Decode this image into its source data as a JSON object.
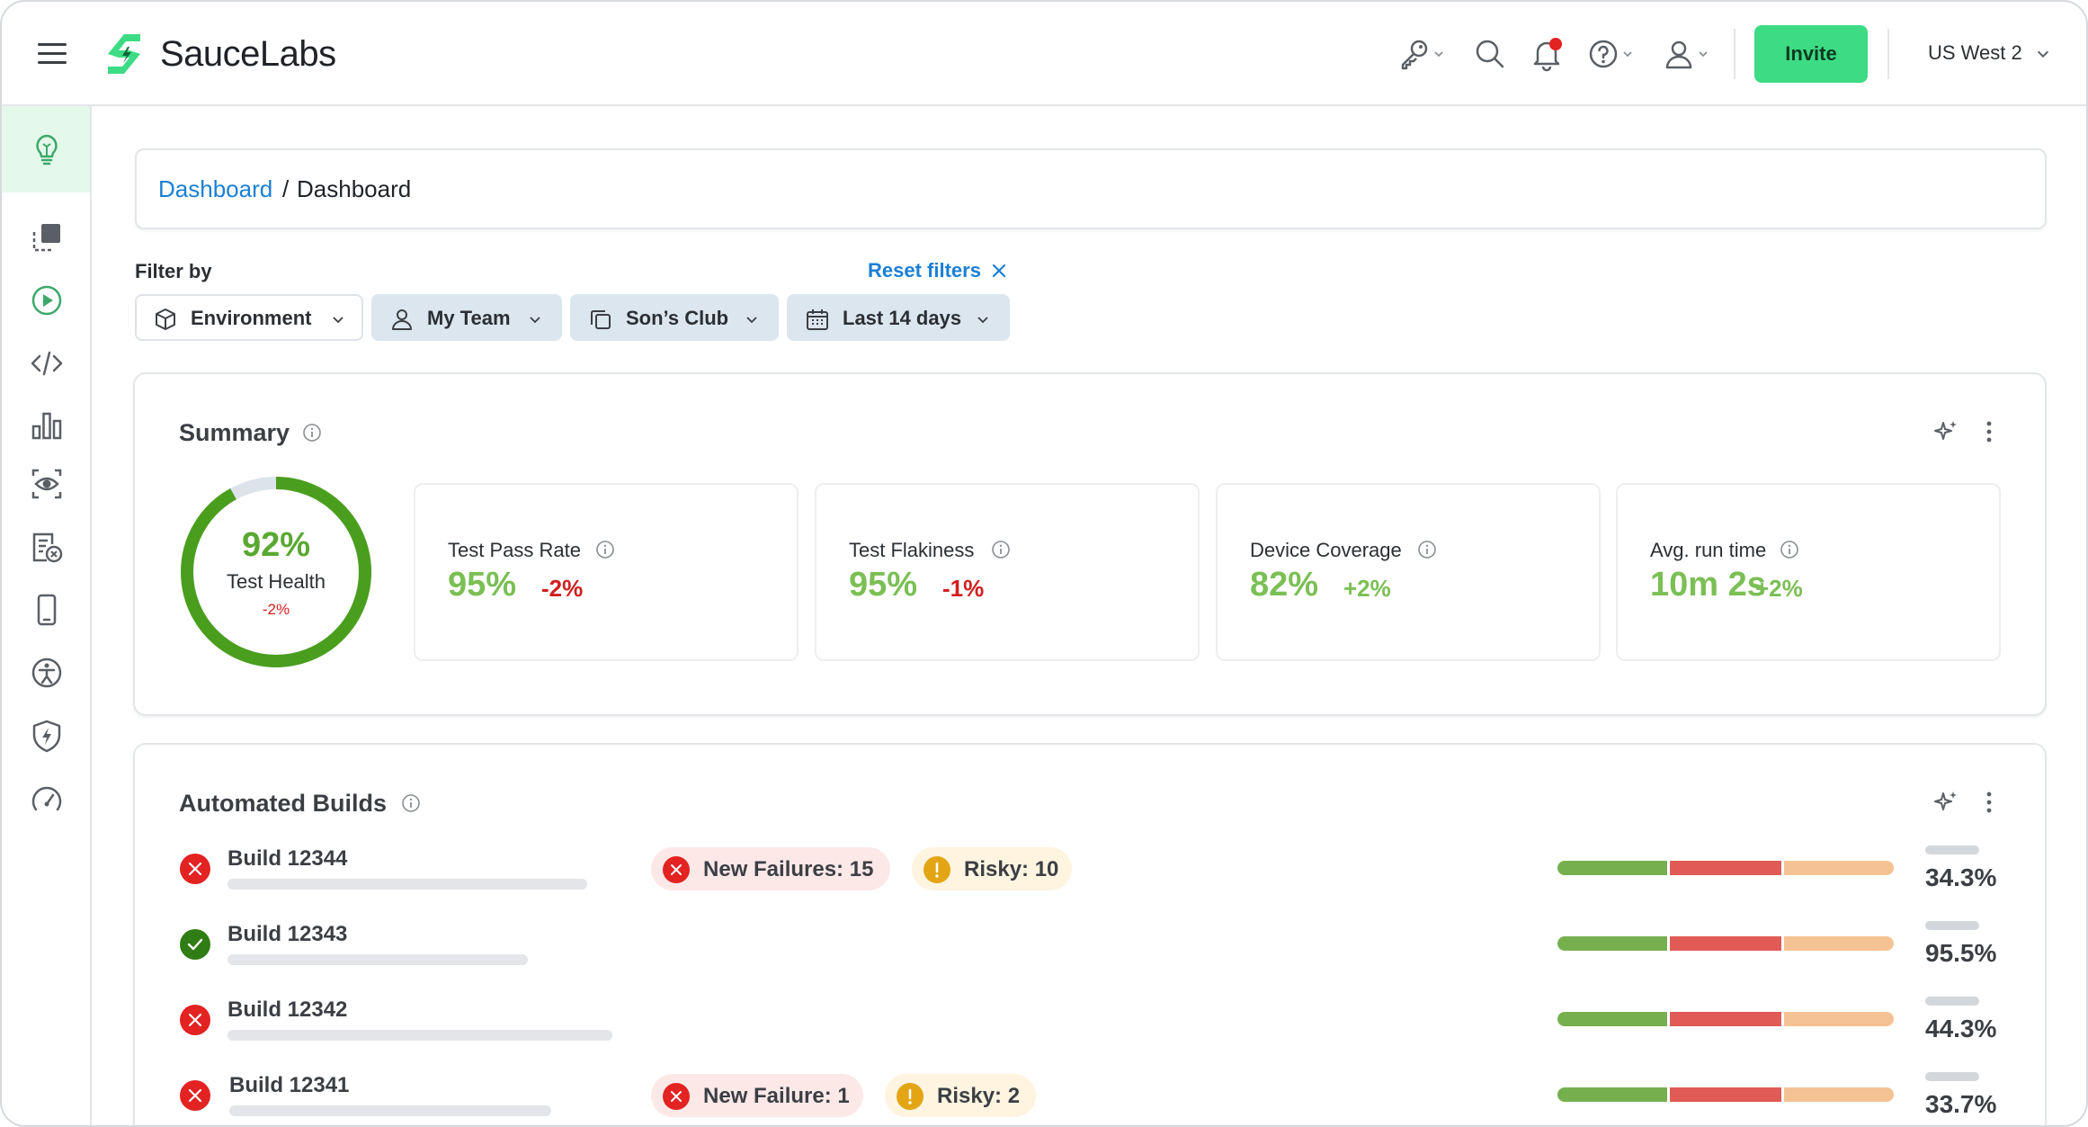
{
  "header": {
    "brand_name": "SauceLabs",
    "invite_label": "Invite",
    "region_label": "US West 2"
  },
  "breadcrumb": {
    "parent": "Dashboard",
    "separator": "/",
    "current": "Dashboard"
  },
  "filters": {
    "label": "Filter by",
    "reset_label": "Reset filters",
    "chips": [
      {
        "label": "Environment",
        "icon": "cube-icon"
      },
      {
        "label": "My Team",
        "icon": "user-icon"
      },
      {
        "label": "Son’s Club",
        "icon": "copy-icon"
      },
      {
        "label": "Last 14 days",
        "icon": "calendar-icon"
      }
    ]
  },
  "summary": {
    "title": "Summary",
    "health": {
      "value": "92%",
      "label": "Test Health",
      "delta": "-2%",
      "fraction": 0.92
    },
    "metrics": [
      {
        "label": "Test Pass Rate",
        "value": "95%",
        "delta": "-2%",
        "delta_color": "#d11f1f"
      },
      {
        "label": "Test Flakiness",
        "value": "95%",
        "delta": "-1%",
        "delta_color": "#d11f1f"
      },
      {
        "label": "Device Coverage",
        "value": "82%",
        "delta": "+2%",
        "delta_color": "#7bbf55"
      },
      {
        "label": "Avg. run time",
        "value": "10m 2s",
        "delta": "+2%",
        "delta_color": "#7bbf55"
      }
    ]
  },
  "builds": {
    "title": "Automated Builds",
    "items": [
      {
        "name": "Build 12344",
        "status": "failed",
        "new_failures": "New Failures: 15",
        "risky": "Risky: 10",
        "pct": "34.3%"
      },
      {
        "name": "Build 12343",
        "status": "passed",
        "pct": "95.5%"
      },
      {
        "name": "Build 12342",
        "status": "failed",
        "pct": "44.3%"
      },
      {
        "name": "Build 12341",
        "status": "failed",
        "new_failures": "New Failure: 1",
        "risky": "Risky: 2",
        "pct": "33.7%"
      }
    ]
  },
  "colors": {
    "accent_green": "#3ddc84",
    "link_blue": "#1b7fd4",
    "positive": "#7bbf55",
    "negative": "#d11f1f"
  }
}
